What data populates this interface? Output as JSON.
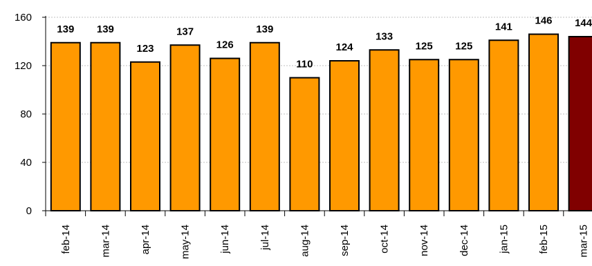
{
  "chart_data": {
    "type": "bar",
    "title": "",
    "xlabel": "",
    "ylabel": "",
    "categories": [
      "feb-14",
      "mar-14",
      "apr-14",
      "may-14",
      "jun-14",
      "jul-14",
      "aug-14",
      "sep-14",
      "oct-14",
      "nov-14",
      "dec-14",
      "jan-15",
      "feb-15",
      "mar-15"
    ],
    "values": [
      139,
      139,
      123,
      137,
      126,
      139,
      110,
      124,
      133,
      125,
      125,
      141,
      146,
      144
    ],
    "ylim": [
      0,
      160
    ],
    "yticks": [
      0,
      40,
      80,
      120,
      160
    ],
    "grid": true,
    "legend": "none",
    "colors": {
      "bar": "#FF9900",
      "highlight_bar": "#800000",
      "bar_outline": "#000000",
      "gridline": "#BFBFBF"
    },
    "highlight_index": 13
  }
}
